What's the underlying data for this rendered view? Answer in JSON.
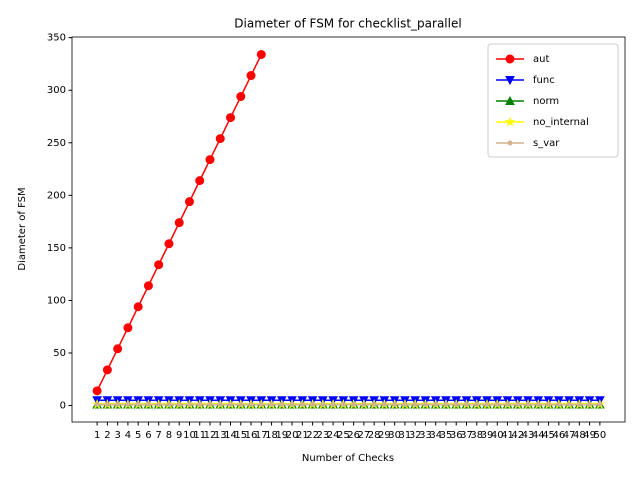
{
  "chart_data": {
    "type": "line",
    "title": "Diameter of FSM for checklist_parallel",
    "x_label": "Number of Checks",
    "y_label": "Diameter of FSM",
    "x": [
      1,
      2,
      3,
      4,
      5,
      6,
      7,
      8,
      9,
      10,
      11,
      12,
      13,
      14,
      15,
      16,
      17,
      18,
      19,
      20,
      21,
      22,
      23,
      24,
      25,
      26,
      27,
      28,
      29,
      30,
      31,
      32,
      33,
      34,
      35,
      36,
      37,
      38,
      39,
      40,
      41,
      42,
      43,
      44,
      45,
      46,
      47,
      48,
      49,
      50
    ],
    "xlim": [
      -1.45,
      52.45
    ],
    "xticks": [
      1,
      2,
      3,
      4,
      5,
      6,
      7,
      8,
      9,
      10,
      11,
      12,
      13,
      14,
      15,
      16,
      17,
      18,
      19,
      20,
      21,
      22,
      23,
      24,
      25,
      26,
      27,
      28,
      29,
      30,
      31,
      32,
      33,
      34,
      35,
      36,
      37,
      38,
      39,
      40,
      41,
      42,
      43,
      44,
      45,
      46,
      47,
      48,
      49,
      50
    ],
    "ylim": [
      -15.65,
      350.65
    ],
    "yticks": [
      0,
      50,
      100,
      150,
      200,
      250,
      300,
      350
    ],
    "legend": "upper right",
    "series": [
      {
        "name": "aut",
        "color": "#ff0000",
        "marker": "o",
        "values": [
          14,
          34,
          54,
          74,
          94,
          114,
          134,
          154,
          174,
          194,
          214,
          234,
          254,
          274,
          294,
          314,
          334,
          null,
          null,
          null,
          null,
          null,
          null,
          null,
          null,
          null,
          null,
          null,
          null,
          null,
          null,
          null,
          null,
          null,
          null,
          null,
          null,
          null,
          null,
          null,
          null,
          null,
          null,
          null,
          null,
          null,
          null,
          null,
          null,
          null
        ]
      },
      {
        "name": "func",
        "color": "#0000ff",
        "marker": "v",
        "values": [
          5,
          5,
          5,
          5,
          5,
          5,
          5,
          5,
          5,
          5,
          5,
          5,
          5,
          5,
          5,
          5,
          5,
          5,
          5,
          5,
          5,
          5,
          5,
          5,
          5,
          5,
          5,
          5,
          5,
          5,
          5,
          5,
          5,
          5,
          5,
          5,
          5,
          5,
          5,
          5,
          5,
          5,
          5,
          5,
          5,
          5,
          5,
          5,
          5,
          5
        ]
      },
      {
        "name": "norm",
        "color": "#008000",
        "marker": "^",
        "values": [
          1,
          1,
          1,
          1,
          1,
          1,
          1,
          1,
          1,
          1,
          1,
          1,
          1,
          1,
          1,
          1,
          1,
          1,
          1,
          1,
          1,
          1,
          1,
          1,
          1,
          1,
          1,
          1,
          1,
          1,
          1,
          1,
          1,
          1,
          1,
          1,
          1,
          1,
          1,
          1,
          1,
          1,
          1,
          1,
          1,
          1,
          1,
          1,
          1,
          1
        ]
      },
      {
        "name": "no_internal",
        "color": "#ffff00",
        "marker": "*",
        "values": [
          1,
          1,
          1,
          1,
          1,
          1,
          1,
          1,
          1,
          1,
          1,
          1,
          1,
          1,
          1,
          1,
          1,
          1,
          1,
          1,
          1,
          1,
          1,
          1,
          1,
          1,
          1,
          1,
          1,
          1,
          1,
          1,
          1,
          1,
          1,
          1,
          1,
          1,
          1,
          1,
          1,
          1,
          1,
          1,
          1,
          1,
          1,
          1,
          1,
          1
        ]
      },
      {
        "name": "s_var",
        "color": "#d2b48c",
        "marker": ".",
        "values": [
          1,
          1,
          1,
          1,
          1,
          1,
          1,
          1,
          1,
          1,
          1,
          1,
          1,
          1,
          1,
          1,
          1,
          1,
          1,
          1,
          1,
          1,
          1,
          1,
          1,
          1,
          1,
          1,
          1,
          1,
          1,
          1,
          1,
          1,
          1,
          1,
          1,
          1,
          1,
          1,
          1,
          1,
          1,
          1,
          1,
          1,
          1,
          1,
          1,
          1
        ]
      }
    ]
  }
}
